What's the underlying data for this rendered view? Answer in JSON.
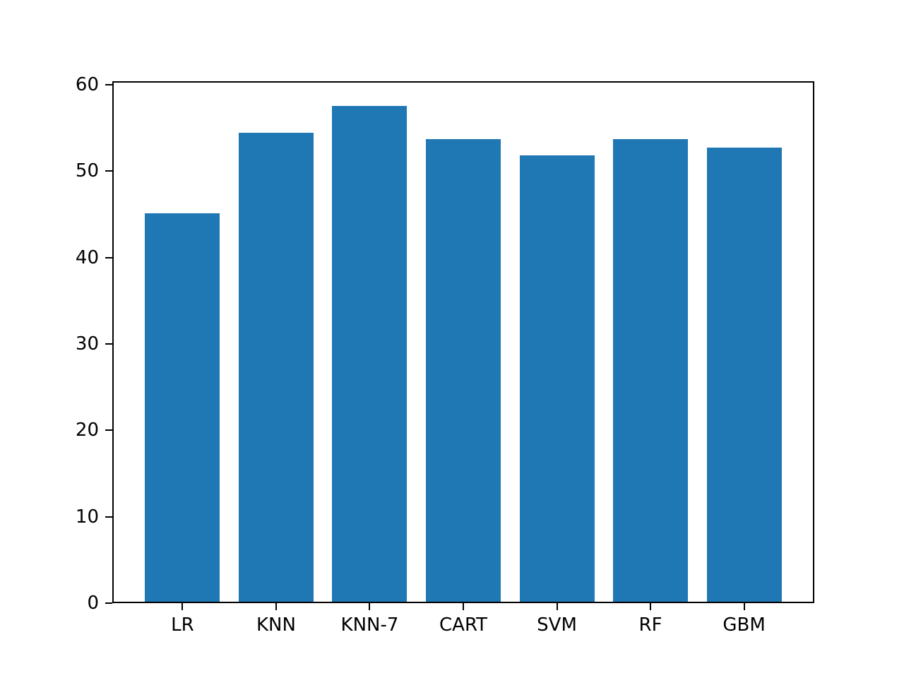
{
  "figure": {
    "background": "#ffffff"
  },
  "chart_data": {
    "type": "bar",
    "title": "",
    "xlabel": "",
    "ylabel": "",
    "categories": [
      "LR",
      "KNN",
      "KNN-7",
      "CART",
      "SVM",
      "RF",
      "GBM"
    ],
    "values": [
      45.1,
      54.4,
      57.5,
      53.7,
      51.8,
      53.7,
      52.7
    ],
    "yticks": [
      0,
      10,
      20,
      30,
      40,
      50,
      60
    ],
    "ylim": [
      0,
      60.4
    ],
    "xlim": [
      -0.75,
      6.75
    ],
    "bar_width": 0.8,
    "bar_color": "#1f77b4",
    "axis_color": "#000000",
    "tick_label_color": "#000000",
    "grid": false,
    "legend_position": "none"
  }
}
